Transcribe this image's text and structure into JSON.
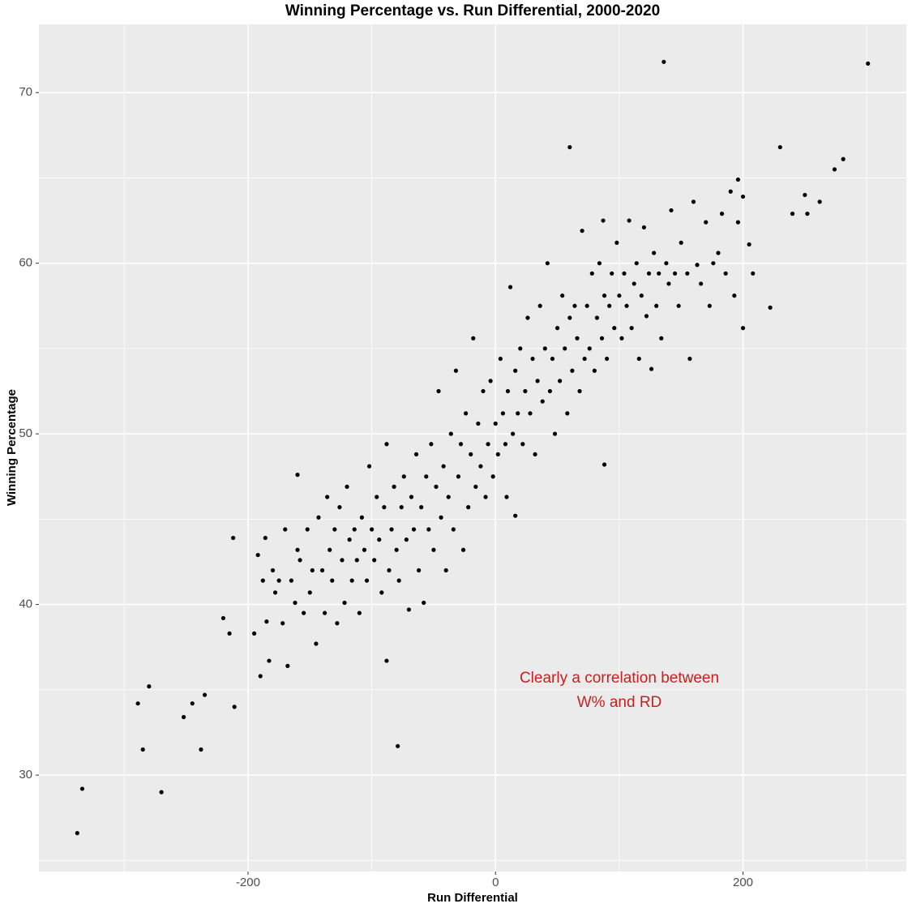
{
  "chart_data": {
    "type": "scatter",
    "title": "Winning Percentage vs. Run Differential, 2000-2020",
    "x_label": "Run Differential",
    "y_label": "Winning Percentage",
    "annotation": [
      "Clearly a correlation between",
      "W% and RD"
    ],
    "annotation_color": "#c8201e",
    "color": "#000000",
    "xlim": [
      -369,
      332
    ],
    "ylim": [
      24.35,
      74
    ],
    "xticks": [
      -200,
      0,
      200
    ],
    "yticks": [
      30,
      40,
      50,
      60,
      70
    ],
    "x_minor_grid": [
      -300,
      -100,
      100,
      300
    ],
    "y_minor_grid": [
      25,
      35,
      45,
      55,
      65
    ],
    "grid": true,
    "x": [
      -338,
      -334,
      -289,
      -280,
      -285,
      -270,
      -252,
      -245,
      -238,
      -235,
      -220,
      -215,
      -211,
      -212,
      -192,
      -186,
      -160,
      -88,
      -79,
      60,
      136,
      301,
      230,
      281,
      274,
      196,
      87,
      222,
      200,
      16,
      9,
      88,
      157,
      -195,
      -190,
      -188,
      -185,
      -183,
      -180,
      -178,
      -175,
      -172,
      -170,
      -168,
      -165,
      -162,
      -160,
      -158,
      -155,
      -152,
      -150,
      -148,
      -145,
      -143,
      -140,
      -138,
      -136,
      -134,
      -132,
      -130,
      -128,
      -126,
      -124,
      -122,
      -120,
      -118,
      -116,
      -114,
      -112,
      -110,
      -108,
      -106,
      -104,
      -102,
      -100,
      -98,
      -96,
      -94,
      -92,
      -90,
      -88,
      -86,
      -84,
      -82,
      -80,
      -78,
      -76,
      -74,
      -72,
      -70,
      -68,
      -66,
      -64,
      -62,
      -60,
      -58,
      -56,
      -54,
      -52,
      -50,
      -48,
      -46,
      -44,
      -42,
      -40,
      -38,
      -36,
      -34,
      -32,
      -30,
      -28,
      -26,
      -24,
      -22,
      -20,
      -18,
      -16,
      -14,
      -12,
      -10,
      -8,
      -6,
      -4,
      -2,
      0,
      2,
      4,
      6,
      8,
      10,
      12,
      14,
      16,
      18,
      20,
      22,
      24,
      26,
      28,
      30,
      32,
      34,
      36,
      38,
      40,
      42,
      44,
      46,
      48,
      50,
      52,
      54,
      56,
      58,
      60,
      62,
      64,
      66,
      68,
      70,
      72,
      74,
      76,
      78,
      80,
      82,
      84,
      86,
      88,
      90,
      92,
      94,
      96,
      98,
      100,
      102,
      104,
      106,
      108,
      110,
      112,
      114,
      116,
      118,
      120,
      122,
      124,
      126,
      128,
      130,
      132,
      134,
      138,
      140,
      142,
      145,
      148,
      150,
      155,
      160,
      163,
      166,
      170,
      173,
      176,
      180,
      183,
      186,
      190,
      193,
      196,
      200,
      205,
      208,
      240,
      250,
      252,
      262
    ],
    "values": [
      26.6,
      29.2,
      34.2,
      35.2,
      31.5,
      29.0,
      33.4,
      34.2,
      31.5,
      34.7,
      39.2,
      38.3,
      34.0,
      43.9,
      42.9,
      43.9,
      47.6,
      36.7,
      31.7,
      66.8,
      71.8,
      71.7,
      66.8,
      66.1,
      65.5,
      64.9,
      62.5,
      57.4,
      56.2,
      45.2,
      46.3,
      48.2,
      54.4,
      38.3,
      35.8,
      41.4,
      39.0,
      36.7,
      42.0,
      40.7,
      41.4,
      38.9,
      44.4,
      36.4,
      41.4,
      40.1,
      43.2,
      42.6,
      39.5,
      44.4,
      40.7,
      42.0,
      37.7,
      45.1,
      42.0,
      39.5,
      46.3,
      43.2,
      41.4,
      44.4,
      38.9,
      45.7,
      42.6,
      40.1,
      46.9,
      43.8,
      41.4,
      44.4,
      42.6,
      39.5,
      45.1,
      43.2,
      41.4,
      48.1,
      44.4,
      42.6,
      46.3,
      43.8,
      40.7,
      45.7,
      49.4,
      42.0,
      44.4,
      46.9,
      43.2,
      41.4,
      45.7,
      47.5,
      43.8,
      39.7,
      46.3,
      44.4,
      48.8,
      42.0,
      45.7,
      40.1,
      47.5,
      44.4,
      49.4,
      43.2,
      46.9,
      52.5,
      45.1,
      48.1,
      42.0,
      46.3,
      50.0,
      44.4,
      53.7,
      47.5,
      49.4,
      43.2,
      51.2,
      45.7,
      48.8,
      55.6,
      46.9,
      50.6,
      48.1,
      52.5,
      46.3,
      49.4,
      53.1,
      47.5,
      50.6,
      48.8,
      54.4,
      51.2,
      49.4,
      52.5,
      58.6,
      50.0,
      53.7,
      51.2,
      55.0,
      49.4,
      52.5,
      56.8,
      51.2,
      54.4,
      48.8,
      53.1,
      57.5,
      51.9,
      55.0,
      60.0,
      52.5,
      54.4,
      50.0,
      56.2,
      53.1,
      58.1,
      55.0,
      51.2,
      56.8,
      53.7,
      57.5,
      55.6,
      52.5,
      61.9,
      54.4,
      57.5,
      55.0,
      59.4,
      53.7,
      56.8,
      60.0,
      55.6,
      58.1,
      54.4,
      57.5,
      59.4,
      56.2,
      61.2,
      58.1,
      55.6,
      59.4,
      57.5,
      62.5,
      56.2,
      58.8,
      60.0,
      54.4,
      58.1,
      62.1,
      56.9,
      59.4,
      53.8,
      60.6,
      57.5,
      59.4,
      55.6,
      60.0,
      58.8,
      63.1,
      59.4,
      57.5,
      61.2,
      59.4,
      63.6,
      59.9,
      58.8,
      62.4,
      57.5,
      60.0,
      60.6,
      62.9,
      59.4,
      64.2,
      58.1,
      62.4,
      63.9,
      61.1,
      59.4,
      62.9,
      64.0,
      62.9,
      63.6
    ]
  }
}
